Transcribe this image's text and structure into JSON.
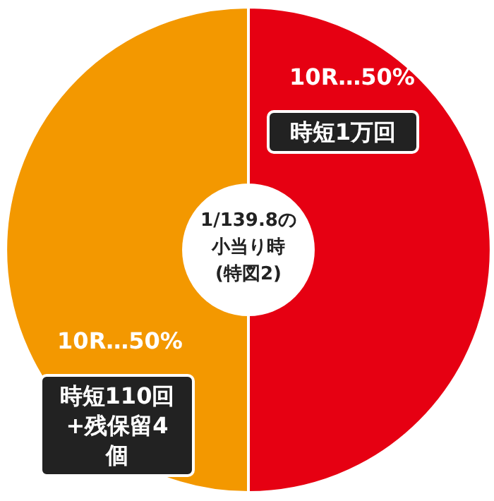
{
  "chart_data": {
    "type": "donut",
    "title": "1/139.8の小当り時(特図2)",
    "categories": [
      "時短1万回",
      "時短110回+残保留4個"
    ],
    "values": [
      50,
      50
    ],
    "colors": [
      "#e60012",
      "#f39800"
    ],
    "value_labels": [
      "10R…50%",
      "10R…50%"
    ],
    "legend": false
  }
}
